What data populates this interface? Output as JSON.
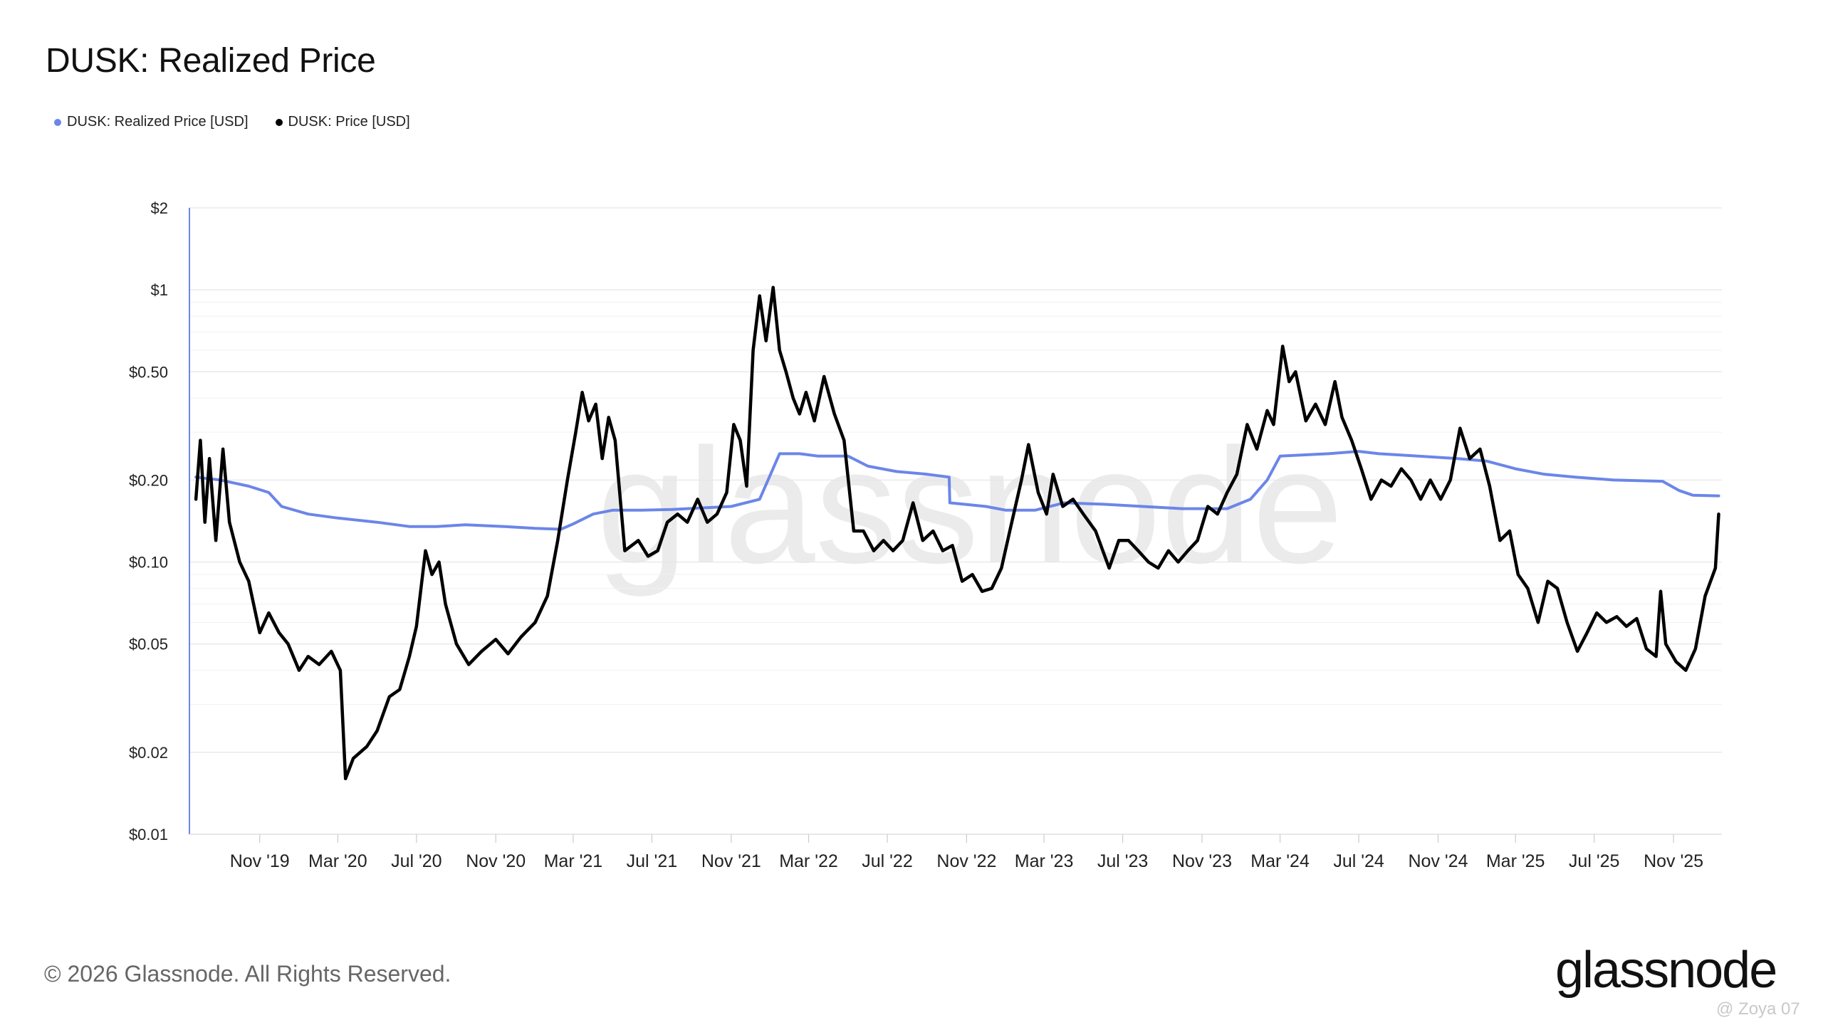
{
  "title": "DUSK: Realized Price",
  "legend": [
    {
      "label": "DUSK: Realized Price [USD]",
      "color": "#6b86e8"
    },
    {
      "label": "DUSK: Price [USD]",
      "color": "#000000"
    }
  ],
  "footer": {
    "copyright": "© 2026 Glassnode. All Rights Reserved.",
    "brand": "glassnode",
    "user_watermark": "@ Zoya 07"
  },
  "chart_data": {
    "type": "line",
    "title": "DUSK: Realized Price",
    "yscale": "log",
    "ylim": [
      0.01,
      2
    ],
    "y_ticks": [
      {
        "value": 2,
        "label": "$2"
      },
      {
        "value": 1,
        "label": "$1"
      },
      {
        "value": 0.5,
        "label": "$0.50"
      },
      {
        "value": 0.2,
        "label": "$0.20"
      },
      {
        "value": 0.1,
        "label": "$0.10"
      },
      {
        "value": 0.05,
        "label": "$0.05"
      },
      {
        "value": 0.02,
        "label": "$0.02"
      },
      {
        "value": 0.01,
        "label": "$0.01"
      }
    ],
    "xlim": [
      "2019-07-15",
      "2026-01-15"
    ],
    "x_ticks": [
      {
        "date": "2019-11-01",
        "label": "Nov '19"
      },
      {
        "date": "2020-03-01",
        "label": "Mar '20"
      },
      {
        "date": "2020-07-01",
        "label": "Jul '20"
      },
      {
        "date": "2020-11-01",
        "label": "Nov '20"
      },
      {
        "date": "2021-03-01",
        "label": "Mar '21"
      },
      {
        "date": "2021-07-01",
        "label": "Jul '21"
      },
      {
        "date": "2021-11-01",
        "label": "Nov '21"
      },
      {
        "date": "2022-03-01",
        "label": "Mar '22"
      },
      {
        "date": "2022-07-01",
        "label": "Jul '22"
      },
      {
        "date": "2022-11-01",
        "label": "Nov '22"
      },
      {
        "date": "2023-03-01",
        "label": "Mar '23"
      },
      {
        "date": "2023-07-01",
        "label": "Jul '23"
      },
      {
        "date": "2023-11-01",
        "label": "Nov '23"
      },
      {
        "date": "2024-03-01",
        "label": "Mar '24"
      },
      {
        "date": "2024-07-01",
        "label": "Jul '24"
      },
      {
        "date": "2024-11-01",
        "label": "Nov '24"
      },
      {
        "date": "2025-03-01",
        "label": "Mar '25"
      },
      {
        "date": "2025-07-01",
        "label": "Jul '25"
      },
      {
        "date": "2025-11-01",
        "label": "Nov '25"
      }
    ],
    "series": [
      {
        "name": "DUSK: Realized Price [USD]",
        "color": "#6b86e8",
        "points": [
          [
            "2019-07-25",
            0.205
          ],
          [
            "2019-09-01",
            0.2
          ],
          [
            "2019-10-15",
            0.19
          ],
          [
            "2019-11-15",
            0.18
          ],
          [
            "2019-12-05",
            0.16
          ],
          [
            "2020-01-15",
            0.15
          ],
          [
            "2020-03-01",
            0.145
          ],
          [
            "2020-05-01",
            0.14
          ],
          [
            "2020-06-20",
            0.135
          ],
          [
            "2020-08-01",
            0.135
          ],
          [
            "2020-09-15",
            0.137
          ],
          [
            "2020-11-15",
            0.135
          ],
          [
            "2021-01-01",
            0.133
          ],
          [
            "2021-02-10",
            0.132
          ],
          [
            "2021-03-01",
            0.138
          ],
          [
            "2021-04-01",
            0.15
          ],
          [
            "2021-05-01",
            0.155
          ],
          [
            "2021-06-15",
            0.155
          ],
          [
            "2021-08-01",
            0.156
          ],
          [
            "2021-09-15",
            0.158
          ],
          [
            "2021-11-01",
            0.16
          ],
          [
            "2021-12-15",
            0.17
          ],
          [
            "2022-01-01",
            0.21
          ],
          [
            "2022-01-15",
            0.25
          ],
          [
            "2022-02-15",
            0.25
          ],
          [
            "2022-03-15",
            0.245
          ],
          [
            "2022-05-01",
            0.245
          ],
          [
            "2022-06-01",
            0.225
          ],
          [
            "2022-07-15",
            0.215
          ],
          [
            "2022-09-01",
            0.21
          ],
          [
            "2022-10-05",
            0.205
          ],
          [
            "2022-10-06",
            0.165
          ],
          [
            "2022-12-01",
            0.16
          ],
          [
            "2023-01-01",
            0.155
          ],
          [
            "2023-02-15",
            0.155
          ],
          [
            "2023-04-01",
            0.165
          ],
          [
            "2023-06-01",
            0.163
          ],
          [
            "2023-08-01",
            0.16
          ],
          [
            "2023-10-01",
            0.157
          ],
          [
            "2023-12-10",
            0.157
          ],
          [
            "2024-01-15",
            0.17
          ],
          [
            "2024-02-10",
            0.2
          ],
          [
            "2024-03-01",
            0.245
          ],
          [
            "2024-05-15",
            0.25
          ],
          [
            "2024-07-01",
            0.255
          ],
          [
            "2024-08-01",
            0.25
          ],
          [
            "2024-10-01",
            0.245
          ],
          [
            "2024-12-01",
            0.24
          ],
          [
            "2025-01-15",
            0.235
          ],
          [
            "2025-03-01",
            0.22
          ],
          [
            "2025-04-15",
            0.21
          ],
          [
            "2025-06-01",
            0.205
          ],
          [
            "2025-08-01",
            0.2
          ],
          [
            "2025-10-15",
            0.198
          ],
          [
            "2025-11-10",
            0.183
          ],
          [
            "2025-12-01",
            0.176
          ],
          [
            "2026-01-10",
            0.175
          ]
        ]
      },
      {
        "name": "DUSK: Price [USD]",
        "color": "#000000",
        "points": [
          [
            "2019-07-25",
            0.17
          ],
          [
            "2019-08-01",
            0.28
          ],
          [
            "2019-08-08",
            0.14
          ],
          [
            "2019-08-15",
            0.24
          ],
          [
            "2019-08-25",
            0.12
          ],
          [
            "2019-09-05",
            0.26
          ],
          [
            "2019-09-15",
            0.14
          ],
          [
            "2019-10-01",
            0.1
          ],
          [
            "2019-10-15",
            0.085
          ],
          [
            "2019-11-01",
            0.055
          ],
          [
            "2019-11-15",
            0.065
          ],
          [
            "2019-12-01",
            0.055
          ],
          [
            "2019-12-15",
            0.05
          ],
          [
            "2020-01-01",
            0.04
          ],
          [
            "2020-01-15",
            0.045
          ],
          [
            "2020-02-01",
            0.042
          ],
          [
            "2020-02-20",
            0.047
          ],
          [
            "2020-03-05",
            0.04
          ],
          [
            "2020-03-13",
            0.016
          ],
          [
            "2020-03-25",
            0.019
          ],
          [
            "2020-04-15",
            0.021
          ],
          [
            "2020-05-01",
            0.024
          ],
          [
            "2020-05-20",
            0.032
          ],
          [
            "2020-06-05",
            0.034
          ],
          [
            "2020-06-20",
            0.045
          ],
          [
            "2020-07-01",
            0.058
          ],
          [
            "2020-07-15",
            0.11
          ],
          [
            "2020-07-25",
            0.09
          ],
          [
            "2020-08-05",
            0.1
          ],
          [
            "2020-08-15",
            0.07
          ],
          [
            "2020-09-01",
            0.05
          ],
          [
            "2020-09-20",
            0.042
          ],
          [
            "2020-10-10",
            0.047
          ],
          [
            "2020-11-01",
            0.052
          ],
          [
            "2020-11-20",
            0.046
          ],
          [
            "2020-12-10",
            0.053
          ],
          [
            "2021-01-01",
            0.06
          ],
          [
            "2021-01-20",
            0.075
          ],
          [
            "2021-02-05",
            0.12
          ],
          [
            "2021-02-20",
            0.2
          ],
          [
            "2021-03-05",
            0.3
          ],
          [
            "2021-03-15",
            0.42
          ],
          [
            "2021-03-25",
            0.33
          ],
          [
            "2021-04-05",
            0.38
          ],
          [
            "2021-04-15",
            0.24
          ],
          [
            "2021-04-25",
            0.34
          ],
          [
            "2021-05-05",
            0.28
          ],
          [
            "2021-05-20",
            0.11
          ],
          [
            "2021-06-10",
            0.12
          ],
          [
            "2021-06-25",
            0.105
          ],
          [
            "2021-07-10",
            0.11
          ],
          [
            "2021-07-25",
            0.14
          ],
          [
            "2021-08-10",
            0.15
          ],
          [
            "2021-08-25",
            0.14
          ],
          [
            "2021-09-10",
            0.17
          ],
          [
            "2021-09-25",
            0.14
          ],
          [
            "2021-10-10",
            0.15
          ],
          [
            "2021-10-25",
            0.18
          ],
          [
            "2021-11-05",
            0.32
          ],
          [
            "2021-11-15",
            0.28
          ],
          [
            "2021-11-25",
            0.19
          ],
          [
            "2021-12-05",
            0.6
          ],
          [
            "2021-12-15",
            0.95
          ],
          [
            "2021-12-25",
            0.65
          ],
          [
            "2022-01-05",
            1.02
          ],
          [
            "2022-01-15",
            0.6
          ],
          [
            "2022-01-25",
            0.5
          ],
          [
            "2022-02-05",
            0.4
          ],
          [
            "2022-02-15",
            0.35
          ],
          [
            "2022-02-25",
            0.42
          ],
          [
            "2022-03-10",
            0.33
          ],
          [
            "2022-03-25",
            0.48
          ],
          [
            "2022-04-10",
            0.35
          ],
          [
            "2022-04-25",
            0.28
          ],
          [
            "2022-05-10",
            0.13
          ],
          [
            "2022-05-25",
            0.13
          ],
          [
            "2022-06-10",
            0.11
          ],
          [
            "2022-06-25",
            0.12
          ],
          [
            "2022-07-10",
            0.11
          ],
          [
            "2022-07-25",
            0.12
          ],
          [
            "2022-08-10",
            0.165
          ],
          [
            "2022-08-25",
            0.12
          ],
          [
            "2022-09-10",
            0.13
          ],
          [
            "2022-09-25",
            0.11
          ],
          [
            "2022-10-10",
            0.115
          ],
          [
            "2022-10-25",
            0.085
          ],
          [
            "2022-11-10",
            0.09
          ],
          [
            "2022-11-25",
            0.078
          ],
          [
            "2022-12-10",
            0.08
          ],
          [
            "2022-12-25",
            0.095
          ],
          [
            "2023-01-10",
            0.14
          ],
          [
            "2023-01-25",
            0.2
          ],
          [
            "2023-02-05",
            0.27
          ],
          [
            "2023-02-20",
            0.18
          ],
          [
            "2023-03-05",
            0.15
          ],
          [
            "2023-03-15",
            0.21
          ],
          [
            "2023-03-30",
            0.16
          ],
          [
            "2023-04-15",
            0.17
          ],
          [
            "2023-05-01",
            0.15
          ],
          [
            "2023-05-20",
            0.13
          ],
          [
            "2023-06-10",
            0.095
          ],
          [
            "2023-06-25",
            0.12
          ],
          [
            "2023-07-10",
            0.12
          ],
          [
            "2023-07-25",
            0.11
          ],
          [
            "2023-08-10",
            0.1
          ],
          [
            "2023-08-25",
            0.095
          ],
          [
            "2023-09-10",
            0.11
          ],
          [
            "2023-09-25",
            0.1
          ],
          [
            "2023-10-10",
            0.11
          ],
          [
            "2023-10-25",
            0.12
          ],
          [
            "2023-11-10",
            0.16
          ],
          [
            "2023-11-25",
            0.15
          ],
          [
            "2023-12-10",
            0.18
          ],
          [
            "2023-12-25",
            0.21
          ],
          [
            "2024-01-10",
            0.32
          ],
          [
            "2024-01-25",
            0.26
          ],
          [
            "2024-02-10",
            0.36
          ],
          [
            "2024-02-20",
            0.32
          ],
          [
            "2024-03-05",
            0.62
          ],
          [
            "2024-03-15",
            0.46
          ],
          [
            "2024-03-25",
            0.5
          ],
          [
            "2024-04-10",
            0.33
          ],
          [
            "2024-04-25",
            0.38
          ],
          [
            "2024-05-10",
            0.32
          ],
          [
            "2024-05-25",
            0.46
          ],
          [
            "2024-06-05",
            0.34
          ],
          [
            "2024-06-20",
            0.28
          ],
          [
            "2024-07-05",
            0.22
          ],
          [
            "2024-07-20",
            0.17
          ],
          [
            "2024-08-05",
            0.2
          ],
          [
            "2024-08-20",
            0.19
          ],
          [
            "2024-09-05",
            0.22
          ],
          [
            "2024-09-20",
            0.2
          ],
          [
            "2024-10-05",
            0.17
          ],
          [
            "2024-10-20",
            0.2
          ],
          [
            "2024-11-05",
            0.17
          ],
          [
            "2024-11-20",
            0.2
          ],
          [
            "2024-12-05",
            0.31
          ],
          [
            "2024-12-20",
            0.24
          ],
          [
            "2025-01-05",
            0.26
          ],
          [
            "2025-01-20",
            0.19
          ],
          [
            "2025-02-05",
            0.12
          ],
          [
            "2025-02-20",
            0.13
          ],
          [
            "2025-03-05",
            0.09
          ],
          [
            "2025-03-20",
            0.08
          ],
          [
            "2025-04-05",
            0.06
          ],
          [
            "2025-04-20",
            0.085
          ],
          [
            "2025-05-05",
            0.08
          ],
          [
            "2025-05-20",
            0.06
          ],
          [
            "2025-06-05",
            0.047
          ],
          [
            "2025-06-20",
            0.055
          ],
          [
            "2025-07-05",
            0.065
          ],
          [
            "2025-07-20",
            0.06
          ],
          [
            "2025-08-05",
            0.063
          ],
          [
            "2025-08-20",
            0.058
          ],
          [
            "2025-09-05",
            0.062
          ],
          [
            "2025-09-20",
            0.048
          ],
          [
            "2025-10-05",
            0.045
          ],
          [
            "2025-10-12",
            0.078
          ],
          [
            "2025-10-20",
            0.05
          ],
          [
            "2025-11-05",
            0.043
          ],
          [
            "2025-11-20",
            0.04
          ],
          [
            "2025-12-05",
            0.048
          ],
          [
            "2025-12-20",
            0.075
          ],
          [
            "2026-01-05",
            0.095
          ],
          [
            "2026-01-10",
            0.15
          ]
        ]
      }
    ]
  }
}
